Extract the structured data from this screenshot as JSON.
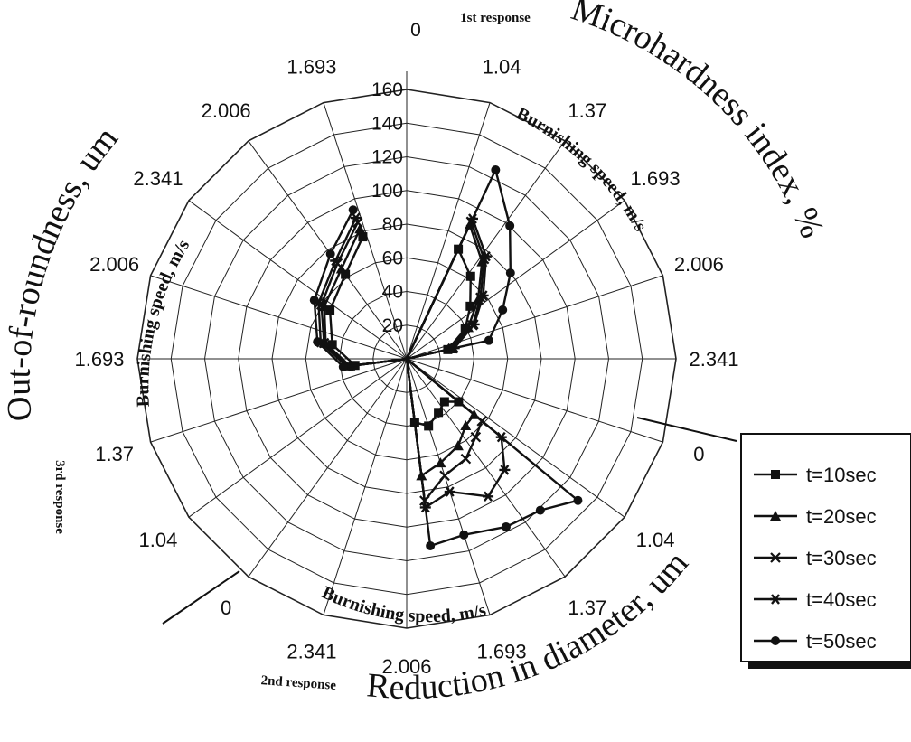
{
  "chart_data": {
    "type": "radar",
    "radial_axis": {
      "ticks": [
        "0",
        "20",
        "40",
        "60",
        "80",
        "100",
        "120",
        "140",
        "160"
      ],
      "range": [
        0,
        160
      ]
    },
    "spokes": 20,
    "response_labels": {
      "first": "1st response",
      "second": "2nd response",
      "third": "3rd response"
    },
    "axis_titles": {
      "microhardness": "Microhardness index, %",
      "reduction": "Reduction in diameter, um",
      "out_of_roundness": "Out-of-roundness, um"
    },
    "sector_titles": {
      "first": "Burnishing speed, m/s",
      "second": "Burnishing speed, m/s",
      "third": "Burnishing speed, m/s"
    },
    "category_labels": [
      "0",
      "1.04",
      "1.37",
      "1.693",
      "2.006",
      "2.341",
      "0",
      "1.04",
      "1.37",
      "1.693",
      "2.006",
      "2.341",
      "0",
      "1.04",
      "1.37",
      "1.693",
      "2.006",
      "2.341",
      "2.006",
      "1.693",
      "1.37",
      "1.04",
      "0"
    ],
    "legend": [
      "t=10sec",
      "t=20sec",
      "t=30sec",
      "t=40sec",
      "t=50sec"
    ],
    "series": [
      {
        "name": "t=10sec",
        "marker": "square",
        "values": [
          0,
          72,
          62,
          49,
          39,
          25,
          0,
          40,
          34,
          37,
          42,
          38,
          0,
          31,
          45,
          54,
          62,
          77
        ]
      },
      {
        "name": "t=20sec",
        "marker": "triangle",
        "values": [
          0,
          88,
          73,
          55,
          41,
          27,
          0,
          52,
          53,
          60,
          65,
          70,
          0,
          34,
          49,
          58,
          66,
          82
        ]
      },
      {
        "name": "t=30sec",
        "marker": "x",
        "values": [
          0,
          90,
          75,
          57,
          44,
          28,
          0,
          58,
          62,
          69,
          73,
          85,
          0,
          35,
          50,
          60,
          70,
          86
        ]
      },
      {
        "name": "t=40sec",
        "marker": "star",
        "values": [
          0,
          92,
          77,
          59,
          45,
          29,
          0,
          73,
          88,
          95,
          83,
          89,
          0,
          36,
          52,
          62,
          72,
          89
        ]
      },
      {
        "name": "t=50sec",
        "marker": "circle",
        "values": [
          0,
          124,
          100,
          80,
          64,
          50,
          0,
          132,
          120,
          116,
          110,
          112,
          0,
          38,
          54,
          65,
          77,
          94
        ]
      }
    ]
  }
}
